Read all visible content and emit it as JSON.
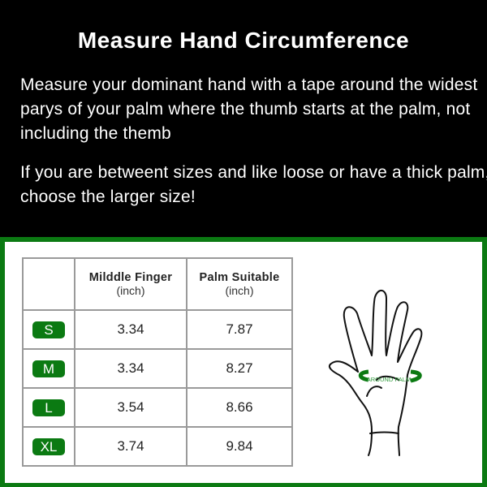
{
  "title": "Measure Hand Circumference",
  "instructions": [
    "Measure your dominant hand  with a tape around the widest parys of your palm where the thumb starts at the palm, not including the themb",
    "If you are betweent sizes and like loose or have a thick palm, choose the larger size!"
  ],
  "table": {
    "headers": [
      {
        "label": "Milddle Finger",
        "unit": "(inch)"
      },
      {
        "label": "Palm Suitable",
        "unit": "(inch)"
      }
    ],
    "rows": [
      {
        "size": "S",
        "finger": "3.34",
        "palm": "7.87"
      },
      {
        "size": "M",
        "finger": "3.34",
        "palm": "8.27"
      },
      {
        "size": "L",
        "finger": "3.54",
        "palm": "8.66"
      },
      {
        "size": "XL",
        "finger": "3.74",
        "palm": "9.84"
      }
    ]
  },
  "illustration": {
    "label": "AROUND PALM"
  },
  "colors": {
    "accent": "#0b7a12",
    "background": "#000000"
  }
}
